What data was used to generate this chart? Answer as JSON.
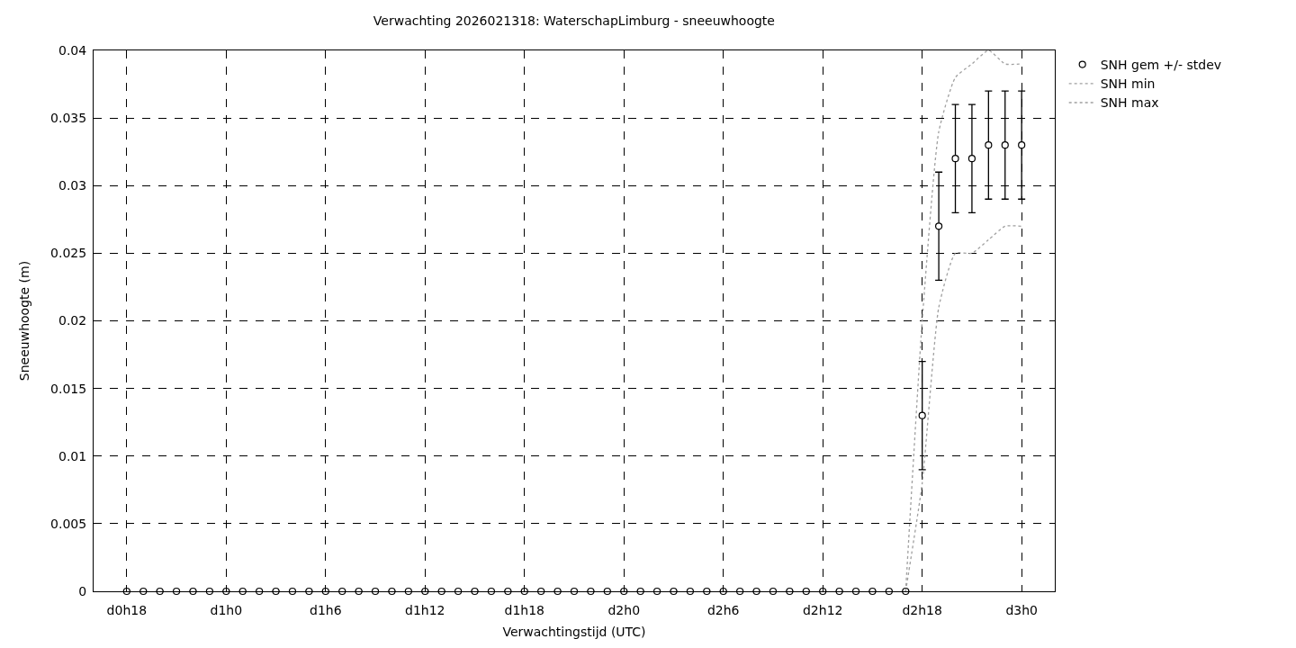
{
  "chart_data": {
    "type": "scatter",
    "title": "Verwachting 2026021318: WaterschapLimburg - sneeuwhoogte",
    "xlabel": "Verwachtingstijd (UTC)",
    "ylabel": "Sneeuwhoogte (m)",
    "categories": [
      "d0h18",
      null,
      null,
      null,
      null,
      null,
      "d1h0",
      null,
      null,
      null,
      null,
      null,
      "d1h6",
      null,
      null,
      null,
      null,
      null,
      "d1h12",
      null,
      null,
      null,
      null,
      null,
      "d1h18",
      null,
      null,
      null,
      null,
      null,
      "d2h0",
      null,
      null,
      null,
      null,
      null,
      "d2h6",
      null,
      null,
      null,
      null,
      null,
      "d2h12",
      null,
      null,
      null,
      null,
      null,
      "d2h18",
      null,
      null,
      null,
      null,
      null,
      "d3h0"
    ],
    "series": [
      {
        "name": "SNH gem +/- stdev",
        "color": "#000000",
        "marker": "circle",
        "values": [
          0,
          0,
          0,
          0,
          0,
          0,
          0,
          0,
          0,
          0,
          0,
          0,
          0,
          0,
          0,
          0,
          0,
          0,
          0,
          0,
          0,
          0,
          0,
          0,
          0,
          0,
          0,
          0,
          0,
          0,
          0,
          0,
          0,
          0,
          0,
          0,
          0,
          0,
          0,
          0,
          0,
          0,
          0,
          0,
          0,
          0,
          0,
          0,
          0.013,
          0.027,
          0.032,
          0.032,
          0.033,
          0.033,
          0.033
        ],
        "errors": [
          null,
          null,
          null,
          null,
          null,
          null,
          null,
          null,
          null,
          null,
          null,
          null,
          null,
          null,
          null,
          null,
          null,
          null,
          null,
          null,
          null,
          null,
          null,
          null,
          null,
          null,
          null,
          null,
          null,
          null,
          null,
          null,
          null,
          null,
          null,
          null,
          null,
          null,
          null,
          null,
          null,
          null,
          null,
          null,
          null,
          null,
          null,
          null,
          0.004,
          0.004,
          0.004,
          0.004,
          0.004,
          0.004,
          0.004
        ]
      },
      {
        "name": "SNH min",
        "type": "line",
        "color": "#a0a0a0",
        "line_style": "dotted",
        "marker": "none",
        "values": [
          null,
          null,
          null,
          null,
          null,
          null,
          null,
          null,
          null,
          null,
          null,
          null,
          null,
          null,
          null,
          null,
          null,
          null,
          null,
          null,
          null,
          null,
          null,
          null,
          null,
          null,
          null,
          null,
          null,
          null,
          null,
          null,
          null,
          null,
          null,
          null,
          null,
          null,
          null,
          null,
          null,
          null,
          null,
          null,
          null,
          null,
          null,
          0,
          0.008,
          0.021,
          0.025,
          0.025,
          0.026,
          0.027,
          0.027
        ]
      },
      {
        "name": "SNH max",
        "type": "line",
        "color": "#a0a0a0",
        "line_style": "dotted",
        "marker": "none",
        "values": [
          null,
          null,
          null,
          null,
          null,
          null,
          null,
          null,
          null,
          null,
          null,
          null,
          null,
          null,
          null,
          null,
          null,
          null,
          null,
          null,
          null,
          null,
          null,
          null,
          null,
          null,
          null,
          null,
          null,
          null,
          null,
          null,
          null,
          null,
          null,
          null,
          null,
          null,
          null,
          null,
          null,
          null,
          null,
          null,
          null,
          null,
          null,
          0,
          0.02,
          0.034,
          0.038,
          0.039,
          0.04,
          0.039,
          0.039
        ]
      }
    ],
    "ylim": [
      0,
      0.04
    ],
    "yticks": [
      0,
      0.005,
      0.01,
      0.015,
      0.02,
      0.025,
      0.03,
      0.035,
      0.04
    ],
    "grid": true,
    "legend": "top right"
  }
}
